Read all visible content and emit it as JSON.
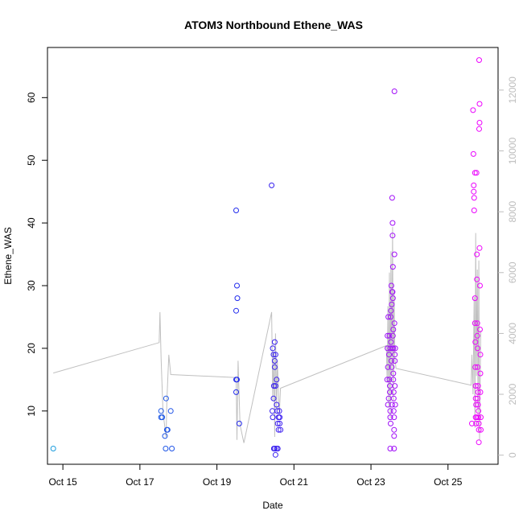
{
  "chart_data": {
    "type": "scatter",
    "title": "ATOM3 Northbound Ethene_WAS",
    "xlabel": "Date",
    "ylabel": "Ethene_WAS",
    "xlim": [
      14.6,
      26.3
    ],
    "ylim": [
      1.5,
      68
    ],
    "y2lim": [
      -300,
      13400
    ],
    "grid": false,
    "x_ticks": [
      {
        "value": 15,
        "label": "Oct 15"
      },
      {
        "value": 17,
        "label": "Oct 17"
      },
      {
        "value": 19,
        "label": "Oct 19"
      },
      {
        "value": 21,
        "label": "Oct 21"
      },
      {
        "value": 23,
        "label": "Oct 23"
      },
      {
        "value": 25,
        "label": "Oct 25"
      }
    ],
    "y_ticks": [
      10,
      20,
      30,
      40,
      50,
      60
    ],
    "y2_ticks": [
      0,
      2000,
      4000,
      6000,
      8000,
      10000,
      12000
    ],
    "colors": {
      "secondary_line": "#c0c0c0",
      "secondary_axis": "#bdbdbd",
      "point_gradient_start": "#1aa0dc",
      "point_gradient_mid": "#2222ee",
      "point_gradient_end": "#ff00ff"
    },
    "points": [
      {
        "x": 14.75,
        "y": 4
      },
      {
        "x": 17.55,
        "y": 9
      },
      {
        "x": 17.55,
        "y": 10
      },
      {
        "x": 17.58,
        "y": 9
      },
      {
        "x": 17.65,
        "y": 6
      },
      {
        "x": 17.67,
        "y": 4
      },
      {
        "x": 17.68,
        "y": 12
      },
      {
        "x": 17.7,
        "y": 7
      },
      {
        "x": 17.72,
        "y": 7
      },
      {
        "x": 17.8,
        "y": 10
      },
      {
        "x": 17.83,
        "y": 4
      },
      {
        "x": 19.5,
        "y": 42
      },
      {
        "x": 19.5,
        "y": 26
      },
      {
        "x": 19.52,
        "y": 30
      },
      {
        "x": 19.53,
        "y": 28
      },
      {
        "x": 19.5,
        "y": 15
      },
      {
        "x": 19.52,
        "y": 15
      },
      {
        "x": 19.5,
        "y": 13
      },
      {
        "x": 19.58,
        "y": 8
      },
      {
        "x": 20.42,
        "y": 46
      },
      {
        "x": 20.45,
        "y": 20
      },
      {
        "x": 20.47,
        "y": 19
      },
      {
        "x": 20.48,
        "y": 14
      },
      {
        "x": 20.47,
        "y": 12
      },
      {
        "x": 20.45,
        "y": 9
      },
      {
        "x": 20.44,
        "y": 10
      },
      {
        "x": 20.5,
        "y": 21
      },
      {
        "x": 20.5,
        "y": 18
      },
      {
        "x": 20.5,
        "y": 17
      },
      {
        "x": 20.52,
        "y": 19
      },
      {
        "x": 20.52,
        "y": 14
      },
      {
        "x": 20.5,
        "y": 4
      },
      {
        "x": 20.52,
        "y": 3
      },
      {
        "x": 20.55,
        "y": 4
      },
      {
        "x": 20.55,
        "y": 11
      },
      {
        "x": 20.57,
        "y": 10
      },
      {
        "x": 20.58,
        "y": 8
      },
      {
        "x": 20.6,
        "y": 9
      },
      {
        "x": 20.6,
        "y": 7
      },
      {
        "x": 20.62,
        "y": 10
      },
      {
        "x": 20.63,
        "y": 9
      },
      {
        "x": 20.63,
        "y": 8
      },
      {
        "x": 20.65,
        "y": 7
      },
      {
        "x": 20.55,
        "y": 15
      },
      {
        "x": 20.48,
        "y": 4
      },
      {
        "x": 20.58,
        "y": 4
      },
      {
        "x": 23.42,
        "y": 15
      },
      {
        "x": 23.43,
        "y": 22
      },
      {
        "x": 23.43,
        "y": 20
      },
      {
        "x": 23.44,
        "y": 17
      },
      {
        "x": 23.44,
        "y": 11
      },
      {
        "x": 23.45,
        "y": 25
      },
      {
        "x": 23.46,
        "y": 12
      },
      {
        "x": 23.47,
        "y": 19
      },
      {
        "x": 23.48,
        "y": 15
      },
      {
        "x": 23.48,
        "y": 22
      },
      {
        "x": 23.49,
        "y": 14
      },
      {
        "x": 23.49,
        "y": 13
      },
      {
        "x": 23.5,
        "y": 20
      },
      {
        "x": 23.5,
        "y": 10
      },
      {
        "x": 23.5,
        "y": 9
      },
      {
        "x": 23.5,
        "y": 4
      },
      {
        "x": 23.51,
        "y": 25
      },
      {
        "x": 23.51,
        "y": 8
      },
      {
        "x": 23.52,
        "y": 26
      },
      {
        "x": 23.52,
        "y": 21
      },
      {
        "x": 23.53,
        "y": 18
      },
      {
        "x": 23.53,
        "y": 30
      },
      {
        "x": 23.54,
        "y": 27
      },
      {
        "x": 23.54,
        "y": 17
      },
      {
        "x": 23.55,
        "y": 44
      },
      {
        "x": 23.55,
        "y": 20
      },
      {
        "x": 23.55,
        "y": 11
      },
      {
        "x": 23.56,
        "y": 40
      },
      {
        "x": 23.56,
        "y": 38
      },
      {
        "x": 23.56,
        "y": 29
      },
      {
        "x": 23.57,
        "y": 33
      },
      {
        "x": 23.57,
        "y": 28
      },
      {
        "x": 23.57,
        "y": 22
      },
      {
        "x": 23.58,
        "y": 20
      },
      {
        "x": 23.58,
        "y": 16
      },
      {
        "x": 23.58,
        "y": 15
      },
      {
        "x": 23.59,
        "y": 13
      },
      {
        "x": 23.59,
        "y": 12
      },
      {
        "x": 23.59,
        "y": 10
      },
      {
        "x": 23.6,
        "y": 9
      },
      {
        "x": 23.6,
        "y": 7
      },
      {
        "x": 23.6,
        "y": 6
      },
      {
        "x": 23.6,
        "y": 4
      },
      {
        "x": 23.61,
        "y": 61
      },
      {
        "x": 23.61,
        "y": 35
      },
      {
        "x": 23.61,
        "y": 24
      },
      {
        "x": 23.62,
        "y": 19
      },
      {
        "x": 23.62,
        "y": 18
      },
      {
        "x": 23.62,
        "y": 14
      },
      {
        "x": 23.63,
        "y": 20
      },
      {
        "x": 23.63,
        "y": 11
      },
      {
        "x": 23.55,
        "y": 29
      },
      {
        "x": 23.58,
        "y": 23
      },
      {
        "x": 25.62,
        "y": 8
      },
      {
        "x": 25.65,
        "y": 58
      },
      {
        "x": 25.66,
        "y": 51
      },
      {
        "x": 25.67,
        "y": 46
      },
      {
        "x": 25.67,
        "y": 45
      },
      {
        "x": 25.68,
        "y": 42
      },
      {
        "x": 25.68,
        "y": 44
      },
      {
        "x": 25.7,
        "y": 48
      },
      {
        "x": 25.7,
        "y": 28
      },
      {
        "x": 25.7,
        "y": 24
      },
      {
        "x": 25.71,
        "y": 21
      },
      {
        "x": 25.71,
        "y": 17
      },
      {
        "x": 25.72,
        "y": 14
      },
      {
        "x": 25.72,
        "y": 12
      },
      {
        "x": 25.72,
        "y": 9
      },
      {
        "x": 25.73,
        "y": 8
      },
      {
        "x": 25.73,
        "y": 11
      },
      {
        "x": 25.74,
        "y": 48
      },
      {
        "x": 25.75,
        "y": 35
      },
      {
        "x": 25.75,
        "y": 31
      },
      {
        "x": 25.76,
        "y": 24
      },
      {
        "x": 25.76,
        "y": 22
      },
      {
        "x": 25.77,
        "y": 20
      },
      {
        "x": 25.77,
        "y": 17
      },
      {
        "x": 25.78,
        "y": 14
      },
      {
        "x": 25.78,
        "y": 13
      },
      {
        "x": 25.78,
        "y": 11
      },
      {
        "x": 25.79,
        "y": 10
      },
      {
        "x": 25.79,
        "y": 9
      },
      {
        "x": 25.8,
        "y": 8
      },
      {
        "x": 25.8,
        "y": 7
      },
      {
        "x": 25.8,
        "y": 5
      },
      {
        "x": 25.81,
        "y": 66
      },
      {
        "x": 25.81,
        "y": 55
      },
      {
        "x": 25.82,
        "y": 56
      },
      {
        "x": 25.82,
        "y": 59
      },
      {
        "x": 25.82,
        "y": 36
      },
      {
        "x": 25.83,
        "y": 30
      },
      {
        "x": 25.83,
        "y": 23
      },
      {
        "x": 25.84,
        "y": 19
      },
      {
        "x": 25.84,
        "y": 16
      },
      {
        "x": 25.84,
        "y": 13
      },
      {
        "x": 25.85,
        "y": 9
      },
      {
        "x": 25.85,
        "y": 7
      },
      {
        "x": 25.75,
        "y": 9
      },
      {
        "x": 25.77,
        "y": 12
      }
    ],
    "secondary_series": [
      {
        "x": 14.75,
        "y": 2700
      },
      {
        "x": 17.5,
        "y": 3700
      },
      {
        "x": 17.52,
        "y": 4700
      },
      {
        "x": 17.55,
        "y": 3200
      },
      {
        "x": 17.6,
        "y": 1400
      },
      {
        "x": 17.68,
        "y": 600
      },
      {
        "x": 17.7,
        "y": 1800
      },
      {
        "x": 17.75,
        "y": 3300
      },
      {
        "x": 17.8,
        "y": 2650
      },
      {
        "x": 19.5,
        "y": 2550
      },
      {
        "x": 19.52,
        "y": 500
      },
      {
        "x": 19.55,
        "y": 3100
      },
      {
        "x": 19.6,
        "y": 1000
      },
      {
        "x": 19.7,
        "y": 400
      },
      {
        "x": 20.42,
        "y": 4700
      },
      {
        "x": 20.45,
        "y": 1800
      },
      {
        "x": 20.48,
        "y": 3400
      },
      {
        "x": 20.5,
        "y": 600
      },
      {
        "x": 20.52,
        "y": 4000
      },
      {
        "x": 20.55,
        "y": 1500
      },
      {
        "x": 20.57,
        "y": 3100
      },
      {
        "x": 20.6,
        "y": 2000
      },
      {
        "x": 20.62,
        "y": 1300
      },
      {
        "x": 20.65,
        "y": 2200
      },
      {
        "x": 23.4,
        "y": 3600
      },
      {
        "x": 23.42,
        "y": 2400
      },
      {
        "x": 23.44,
        "y": 4900
      },
      {
        "x": 23.46,
        "y": 1600
      },
      {
        "x": 23.48,
        "y": 6000
      },
      {
        "x": 23.5,
        "y": 1200
      },
      {
        "x": 23.52,
        "y": 6700
      },
      {
        "x": 23.54,
        "y": 2600
      },
      {
        "x": 23.56,
        "y": 7500
      },
      {
        "x": 23.58,
        "y": 1800
      },
      {
        "x": 23.6,
        "y": 5400
      },
      {
        "x": 23.62,
        "y": 3200
      },
      {
        "x": 23.65,
        "y": 2850
      },
      {
        "x": 25.6,
        "y": 2300
      },
      {
        "x": 25.62,
        "y": 3300
      },
      {
        "x": 25.65,
        "y": 2000
      },
      {
        "x": 25.68,
        "y": 5200
      },
      {
        "x": 25.7,
        "y": 900
      },
      {
        "x": 25.72,
        "y": 7300
      },
      {
        "x": 25.74,
        "y": 2600
      },
      {
        "x": 25.76,
        "y": 6100
      },
      {
        "x": 25.78,
        "y": 1400
      },
      {
        "x": 25.8,
        "y": 6400
      },
      {
        "x": 25.82,
        "y": 500
      },
      {
        "x": 25.85,
        "y": 4100
      }
    ]
  }
}
